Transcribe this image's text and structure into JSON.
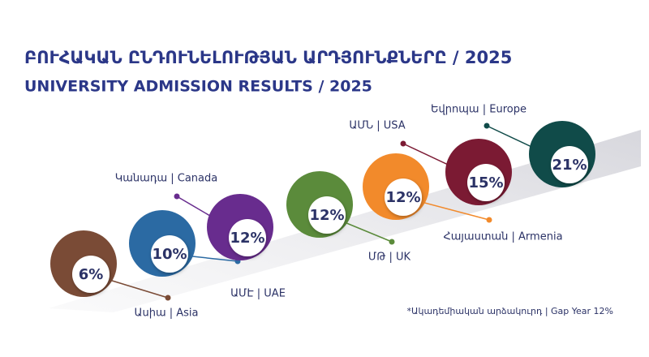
{
  "chart_data": {
    "type": "circles",
    "title": "ԲՈՒՀԱԿԱՆ ԸՆԴՈՒՆԵԼՈՒԹՅԱՆ ԱՐԴՅՈՒՆՔՆԵՐԸ / 2025",
    "subtitle": "UNIVERSITY ADMISSION RESULTS / 2025",
    "footnote": "*Ակադեմիական արձակուրդ | Gap Year 12%",
    "categories": [
      "Ասիա | Asia",
      "ԱՄԷ | UAE",
      "Կանադա | Canada",
      "ՄԹ | UK",
      "Հայաստան | Armenia",
      "ԱՄՆ | USA",
      "Եվրոպա | Europe"
    ],
    "values": [
      6,
      10,
      12,
      12,
      12,
      15,
      21
    ],
    "value_labels": [
      "6%",
      "10%",
      "12%",
      "12%",
      "12%",
      "15%",
      "21%"
    ],
    "colors": [
      "#7a4b36",
      "#2b6aa3",
      "#682c8e",
      "#5b8b3b",
      "#f28a2b",
      "#7b1a33",
      "#104b49"
    ]
  }
}
